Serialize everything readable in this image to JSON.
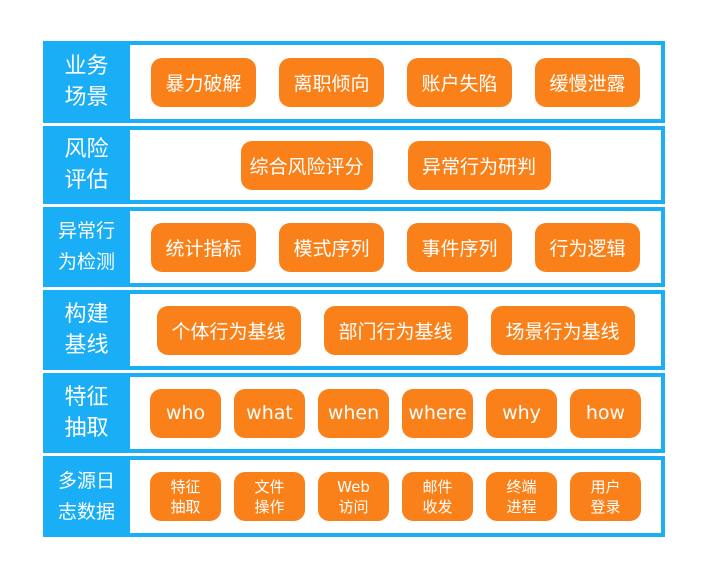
{
  "colors": {
    "label_bg": "#19aef6",
    "pill_bg": "#fa8119",
    "text": "#ffffff"
  },
  "rows": [
    {
      "label": "业务\n场景",
      "items": [
        "暴力破解",
        "离职倾向",
        "账户失陷",
        "缓慢泄露"
      ]
    },
    {
      "label": "风险\n评估",
      "items": [
        "综合风险评分",
        "异常行为研判"
      ]
    },
    {
      "label": "异常行\n为检测",
      "items": [
        "统计指标",
        "模式序列",
        "事件序列",
        "行为逻辑"
      ]
    },
    {
      "label": "构建\n基线",
      "items": [
        "个体行为基线",
        "部门行为基线",
        "场景行为基线"
      ]
    },
    {
      "label": "特征\n抽取",
      "items": [
        "who",
        "what",
        "when",
        "where",
        "why",
        "how"
      ]
    },
    {
      "label": "多源日\n志数据",
      "items": [
        "特征\n抽取",
        "文件\n操作",
        "Web\n访问",
        "邮件\n收发",
        "终端\n进程",
        "用户\n登录"
      ]
    }
  ]
}
